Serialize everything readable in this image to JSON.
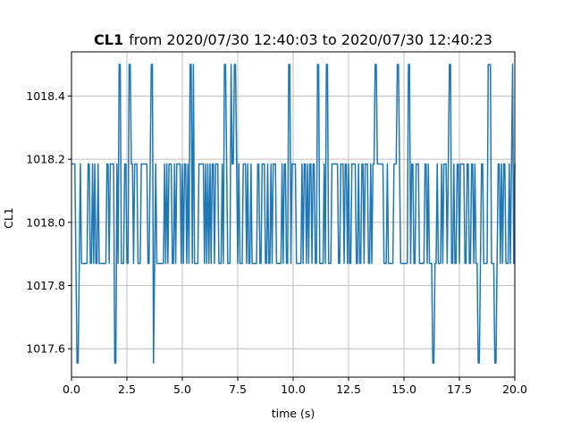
{
  "chart_data": {
    "type": "line",
    "title": {
      "bold": "CL1",
      "rest": "from 2020/07/30 12:40:03 to 2020/07/30 12:40:23"
    },
    "xlabel": "time (s)",
    "ylabel": "CL1",
    "xlim": [
      0,
      20
    ],
    "ylim": [
      1017.51,
      1018.54
    ],
    "x_ticks": [
      "0.0",
      "2.5",
      "5.0",
      "7.5",
      "10.0",
      "12.5",
      "15.0",
      "17.5",
      "20.0"
    ],
    "y_ticks": [
      "1017.6",
      "1017.8",
      "1018.0",
      "1018.2",
      "1018.4"
    ],
    "grid": true,
    "line_color": "#1f77b4",
    "levels": {
      "high": 1018.5,
      "upper": 1018.185,
      "lower": 1017.87,
      "low": 1017.555
    },
    "sample_step_s": 0.05,
    "samples": "UUUULLLULLLLLLLUULULLULLLUULULLLLLLLLLLLLLULULULLLLLLLLLLLLLLLLLLLLLLLLLLLLLLLLLLLLLLLLLLLLLLLLLLLLLLLLLLLLLLLLLLLLLLLLLLLLLLLLLLLLLLLLLLLLLLLLLLLLLLLLLLLLLLLLLLLLLLLLLLLLLLLLLLLLLLLLLLLLLLLLLLLLLLLLLLLLLLLLLLLLLLLLLLLLLLLLLLLLLLLLLLLLLLLLLLLLLLLLLLLLLLLLLLLLLLLLLLLLLLLLLLLLLLLLLLLLLLLLLLLLLLLLLLLLLLLLLLLLLLLLLLLLLLLLLLLLLLLLLLLLLLLLLLLLLLLLLLLLLLLLLLLLLLLLLLLLLLLLLLLLLLLLLLL",
    "spikes_high": [
      2.15,
      2.2,
      2.6,
      2.65,
      3.6,
      3.65,
      5.35,
      5.4,
      5.5,
      6.9,
      6.95,
      7.2,
      7.35,
      7.4,
      9.8,
      9.85,
      11.1,
      11.15,
      11.5,
      11.55,
      13.7,
      13.75,
      14.7,
      14.75,
      15.2,
      15.25,
      17.05,
      17.1,
      18.8,
      18.85,
      18.9,
      19.9
    ],
    "spikes_low": [
      0.25,
      0.3,
      1.95,
      2.0,
      3.65,
      3.7,
      16.3,
      16.35,
      18.35,
      18.4,
      19.1,
      19.15
    ]
  }
}
